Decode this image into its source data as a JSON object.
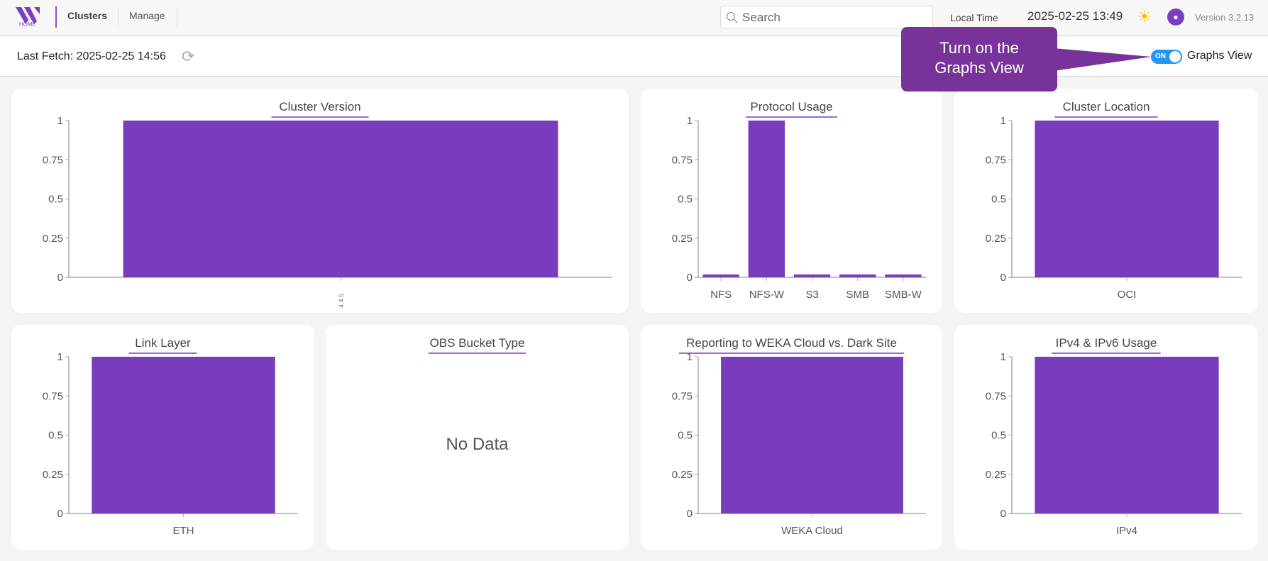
{
  "header": {
    "logo_text": "HOME",
    "nav": [
      {
        "label": "Clusters",
        "active": true
      },
      {
        "label": "Manage",
        "active": false
      }
    ],
    "search_placeholder": "Search",
    "local_time_label": "Local Time",
    "local_time": "2025-02-25 13:49",
    "version": "Version 3.2.13"
  },
  "subbar": {
    "last_fetch": "Last Fetch: 2025-02-25 14:56",
    "toggle_state": "ON",
    "toggle_label": "Graphs View",
    "callout_line1": "Turn on the",
    "callout_line2": "Graphs View"
  },
  "colors": {
    "bar": "#783cbd",
    "accent": "#773399",
    "toggle": "#2196f3"
  },
  "chart_data": [
    {
      "type": "bar",
      "title": "Cluster Version",
      "categories": [
        "4.4.5"
      ],
      "values": [
        1
      ],
      "ylim": [
        0,
        1
      ],
      "yticks": [
        "0",
        "0.25",
        "0.5",
        "0.75",
        "1"
      ],
      "rotate_labels": true
    },
    {
      "type": "bar",
      "title": "Protocol Usage",
      "categories": [
        "NFS",
        "NFS-W",
        "S3",
        "SMB",
        "SMB-W"
      ],
      "values": [
        0,
        1,
        0,
        0,
        0
      ],
      "ylim": [
        0,
        1
      ],
      "yticks": [
        "0",
        "0.25",
        "0.5",
        "0.75",
        "1"
      ]
    },
    {
      "type": "bar",
      "title": "Cluster Location",
      "categories": [
        "OCI"
      ],
      "values": [
        1
      ],
      "ylim": [
        0,
        1
      ],
      "yticks": [
        "0",
        "0.25",
        "0.5",
        "0.75",
        "1"
      ]
    },
    {
      "type": "bar",
      "title": "Link Layer",
      "categories": [
        "ETH"
      ],
      "values": [
        1
      ],
      "ylim": [
        0,
        1
      ],
      "yticks": [
        "0",
        "0.25",
        "0.5",
        "0.75",
        "1"
      ]
    },
    {
      "type": "bar",
      "title": "OBS Bucket Type",
      "categories": [],
      "values": [],
      "no_data": "No Data"
    },
    {
      "type": "bar",
      "title": "Reporting to WEKA Cloud vs. Dark Site",
      "categories": [
        "WEKA Cloud"
      ],
      "values": [
        1
      ],
      "ylim": [
        0,
        1
      ],
      "yticks": [
        "0",
        "0.25",
        "0.5",
        "0.75",
        "1"
      ]
    },
    {
      "type": "bar",
      "title": "IPv4 & IPv6 Usage",
      "categories": [
        "IPv4"
      ],
      "values": [
        1
      ],
      "ylim": [
        0,
        1
      ],
      "yticks": [
        "0",
        "0.25",
        "0.5",
        "0.75",
        "1"
      ]
    }
  ]
}
